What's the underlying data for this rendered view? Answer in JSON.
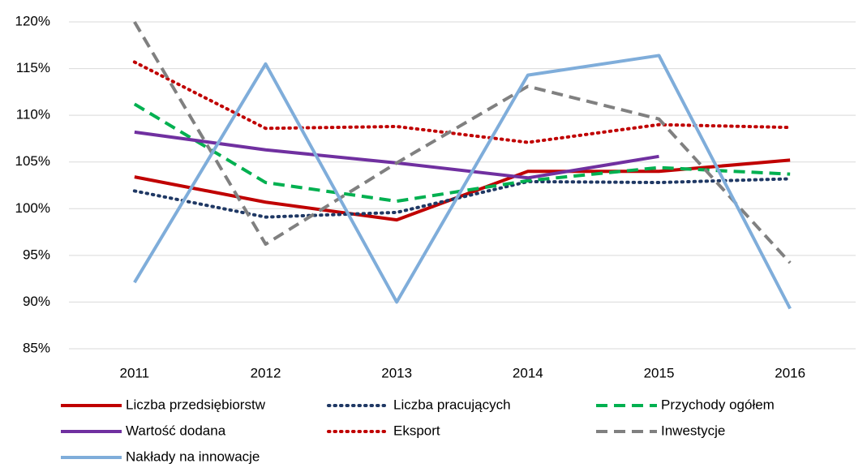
{
  "chart_data": {
    "type": "line",
    "categories": [
      "2011",
      "2012",
      "2013",
      "2014",
      "2015",
      "2016"
    ],
    "ylim": [
      85,
      120
    ],
    "yticks": [
      {
        "value": 85,
        "label": "85%"
      },
      {
        "value": 90,
        "label": "90%"
      },
      {
        "value": 95,
        "label": "95%"
      },
      {
        "value": 100,
        "label": "100%"
      },
      {
        "value": 105,
        "label": "105%"
      },
      {
        "value": 110,
        "label": "110%"
      },
      {
        "value": 115,
        "label": "115%"
      },
      {
        "value": 120,
        "label": "120%"
      }
    ],
    "grid": true,
    "legend": "bottom",
    "series": [
      {
        "name": "Liczba przedsiębiorstw",
        "color": "#c00000",
        "style": "solid",
        "values": [
          103.4,
          100.7,
          98.8,
          104.0,
          104.0,
          105.2
        ]
      },
      {
        "name": "Liczba pracujących",
        "color": "#1f3864",
        "style": "dotted",
        "values": [
          101.9,
          99.1,
          99.6,
          102.9,
          102.8,
          103.2
        ]
      },
      {
        "name": "Przychody ogółem",
        "color": "#00b050",
        "style": "dashed",
        "values": [
          111.2,
          102.8,
          100.8,
          103.0,
          104.4,
          103.7
        ]
      },
      {
        "name": "Wartość dodana",
        "color": "#7030a0",
        "style": "solid",
        "values": [
          108.2,
          106.3,
          104.9,
          103.3,
          105.6,
          null
        ]
      },
      {
        "name": "Eksport",
        "color": "#c00000",
        "style": "dotted",
        "values": [
          115.7,
          108.6,
          108.8,
          107.1,
          109.0,
          108.7
        ]
      },
      {
        "name": "Inwestycje",
        "color": "#808080",
        "style": "dashed",
        "values": [
          120.0,
          96.2,
          104.9,
          113.1,
          109.6,
          94.2
        ]
      },
      {
        "name": "Nakłady na innowacje",
        "color": "#7fadda",
        "style": "solid",
        "values": [
          92.1,
          115.5,
          90.0,
          114.3,
          116.4,
          89.3
        ]
      }
    ]
  }
}
